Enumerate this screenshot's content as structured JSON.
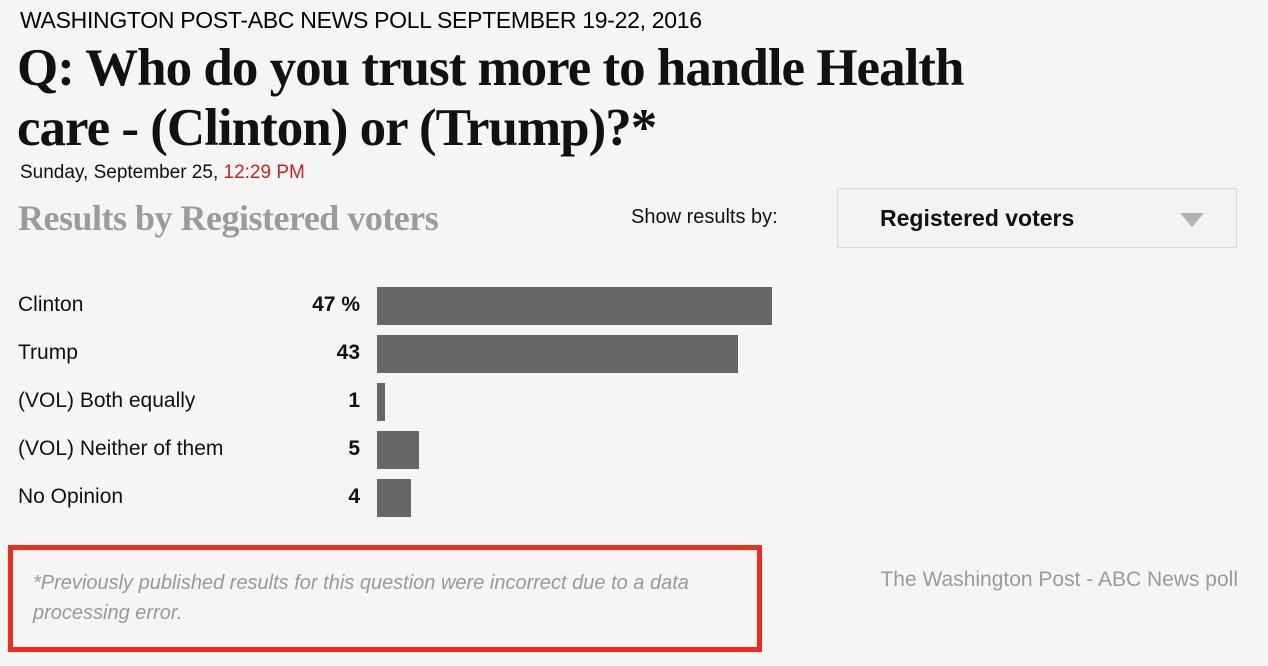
{
  "page": {
    "kicker": "WASHINGTON POST-ABC NEWS POLL SEPTEMBER 19-22, 2016",
    "title_full": "Q: Who do you trust more to handle Health care - (Clinton) or (Trump)?*",
    "title_lines": [
      "Q: Who do you trust more to handle Health",
      "care - (Clinton) or (Trump)?*"
    ],
    "date_prefix": "Sunday, September 25, ",
    "time": "12:29 PM"
  },
  "results_header": {
    "heading": "Results by Registered voters",
    "filter_label": "Show results by:",
    "dropdown_value": "Registered voters"
  },
  "chart_data": {
    "type": "bar",
    "orientation": "horizontal",
    "title": "Results by Registered voters",
    "categories": [
      "Clinton",
      "Trump",
      "(VOL) Both equally",
      "(VOL) Neither of them",
      "No Opinion"
    ],
    "values": [
      47,
      43,
      1,
      5,
      4
    ],
    "display_values": [
      "47 %",
      "43",
      "1",
      "5",
      "4"
    ],
    "unit": "%",
    "xlim": [
      0,
      100
    ],
    "grid": false,
    "legend": false,
    "bar_color": "#666666"
  },
  "footer": {
    "note": "*Previously published results for this question were incorrect due to a data processing error.",
    "credit": "The Washington Post - ABC News poll"
  },
  "colors": {
    "background": "#f5f5f3",
    "bar": "#666666",
    "time_accent": "#cc2127",
    "note_box_border": "#ee2b1c",
    "muted_text": "#9b9b9b"
  }
}
